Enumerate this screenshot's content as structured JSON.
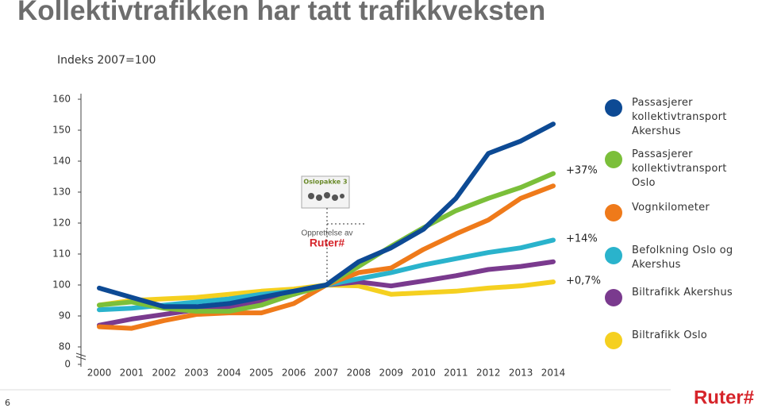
{
  "chart_data": {
    "type": "line",
    "title": "Kollektivtrafikken har tatt trafikkveksten",
    "subtitle": "Indeks 2007=100",
    "categories": [
      "2000",
      "2001",
      "2002",
      "2003",
      "2004",
      "2005",
      "2006",
      "2007",
      "2008",
      "2009",
      "2010",
      "2011",
      "2012",
      "2013",
      "2014"
    ],
    "ylim": [
      80,
      160
    ],
    "yticks": [
      0,
      80,
      90,
      100,
      110,
      120,
      130,
      140,
      150,
      160
    ],
    "y_axis_break": true,
    "series": [
      {
        "name": "Passasjerer kollektivtransport Akershus",
        "color": "#0d4a94",
        "values": [
          99,
          96,
          93,
          93,
          94,
          96,
          98,
          100,
          107.5,
          112,
          118,
          128,
          142.5,
          146.5,
          152
        ]
      },
      {
        "name": "Passasjerer kollektivtransport Oslo",
        "color": "#7bbf3a",
        "values": [
          93.5,
          94.5,
          92.5,
          91.5,
          91.5,
          93.5,
          97,
          100,
          106,
          112.5,
          118.5,
          124,
          128,
          131.5,
          136
        ]
      },
      {
        "name": "Vognkilometer",
        "color": "#ef7a1a",
        "values": [
          86.5,
          86,
          88.5,
          90.5,
          91,
          91,
          94,
          100,
          104,
          105.5,
          111.5,
          116.5,
          121,
          128,
          132
        ]
      },
      {
        "name": "Befolkning Oslo og Akershus",
        "color": "#2ab3cc",
        "values": [
          92,
          92.5,
          93.5,
          94.5,
          95.5,
          97,
          98,
          100,
          102,
          104,
          106.5,
          108.5,
          110.5,
          112,
          114.5
        ]
      },
      {
        "name": "Biltrafikk Akershus",
        "color": "#7a3a8e",
        "values": [
          87,
          89,
          90.5,
          92,
          93,
          95,
          97,
          100,
          101,
          99.7,
          101.3,
          103,
          105,
          106,
          107.5
        ]
      },
      {
        "name": "Biltrafikk Oslo",
        "color": "#f5d020",
        "values": [
          93.5,
          95,
          95.5,
          96,
          97,
          98,
          98.7,
          100,
          99.7,
          97,
          97.5,
          98,
          99,
          99.7,
          101
        ]
      }
    ],
    "annotations": [
      "+37%",
      "+14%",
      "+0,7%"
    ],
    "event": {
      "image_label": "Oslopakke 3",
      "text": "Opprettelse av",
      "logo": "Ruter#"
    },
    "footer": {
      "page_number": "6",
      "logo": "Ruter#"
    }
  }
}
